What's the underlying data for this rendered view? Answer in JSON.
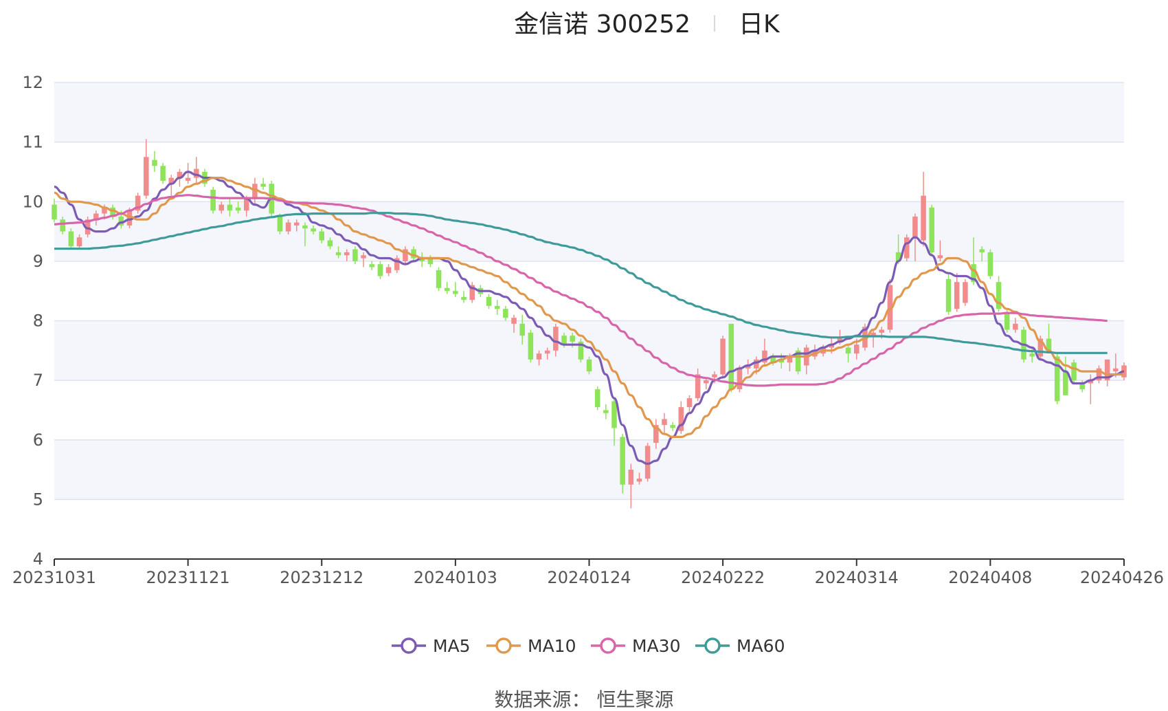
{
  "header": {
    "title": "金信诺 300252",
    "period": "日K"
  },
  "footer": {
    "source": "数据来源： 恒生聚源"
  },
  "colors": {
    "up": "#f28c8c",
    "down": "#8de35a",
    "grid": "#dde3ee",
    "band": "#f4f6fb",
    "MA5": "#7b5bb4",
    "MA10": "#e0984e",
    "MA30": "#d765a9",
    "MA60": "#3f9a9a"
  },
  "chart_data": {
    "type": "candlestick",
    "title": "金信诺 300252 日K",
    "ylim": [
      4,
      12
    ],
    "yticks": [
      4,
      5,
      6,
      7,
      8,
      9,
      10,
      11,
      12
    ],
    "xticks": [
      "20231031",
      "20231121",
      "20231212",
      "20240103",
      "20240124",
      "20240222",
      "20240314",
      "20240408",
      "20240426"
    ],
    "legend": [
      "MA5",
      "MA10",
      "MA30",
      "MA60"
    ],
    "legend_position": "bottom",
    "grid": true,
    "ohlc": [
      [
        9.95,
        10.05,
        9.65,
        9.7
      ],
      [
        9.7,
        9.75,
        9.45,
        9.5
      ],
      [
        9.5,
        9.55,
        9.2,
        9.25
      ],
      [
        9.25,
        9.45,
        9.2,
        9.4
      ],
      [
        9.45,
        9.75,
        9.4,
        9.7
      ],
      [
        9.7,
        9.85,
        9.6,
        9.8
      ],
      [
        9.8,
        9.95,
        9.7,
        9.9
      ],
      [
        9.9,
        9.95,
        9.7,
        9.75
      ],
      [
        9.75,
        9.85,
        9.55,
        9.6
      ],
      [
        9.6,
        9.9,
        9.55,
        9.85
      ],
      [
        9.85,
        10.15,
        9.8,
        10.1
      ],
      [
        10.1,
        11.05,
        10.05,
        10.75
      ],
      [
        10.7,
        10.85,
        10.5,
        10.6
      ],
      [
        10.6,
        10.65,
        10.3,
        10.35
      ],
      [
        10.3,
        10.45,
        10.1,
        10.4
      ],
      [
        10.4,
        10.55,
        10.25,
        10.5
      ],
      [
        10.35,
        10.65,
        10.3,
        10.4
      ],
      [
        10.4,
        10.75,
        10.3,
        10.55
      ],
      [
        10.5,
        10.55,
        10.25,
        10.3
      ],
      [
        10.2,
        10.25,
        9.8,
        9.85
      ],
      [
        9.85,
        10.0,
        9.8,
        9.95
      ],
      [
        9.95,
        10.05,
        9.75,
        9.85
      ],
      [
        9.9,
        10.0,
        9.8,
        9.85
      ],
      [
        9.85,
        10.1,
        9.75,
        10.05
      ],
      [
        10.05,
        10.4,
        9.95,
        10.3
      ],
      [
        10.3,
        10.4,
        10.2,
        10.25
      ],
      [
        10.3,
        10.35,
        9.75,
        9.8
      ],
      [
        9.75,
        9.8,
        9.45,
        9.5
      ],
      [
        9.5,
        9.7,
        9.45,
        9.65
      ],
      [
        9.6,
        9.7,
        9.5,
        9.65
      ],
      [
        9.6,
        9.65,
        9.25,
        9.55
      ],
      [
        9.55,
        9.6,
        9.45,
        9.5
      ],
      [
        9.5,
        9.55,
        9.3,
        9.35
      ],
      [
        9.35,
        9.4,
        9.2,
        9.25
      ],
      [
        9.15,
        9.25,
        9.05,
        9.1
      ],
      [
        9.1,
        9.2,
        9.0,
        9.15
      ],
      [
        9.2,
        9.25,
        8.95,
        9.0
      ],
      [
        9.05,
        9.15,
        8.9,
        9.1
      ],
      [
        8.95,
        9.0,
        8.85,
        8.9
      ],
      [
        8.95,
        9.0,
        8.7,
        8.75
      ],
      [
        8.8,
        8.95,
        8.75,
        8.9
      ],
      [
        8.85,
        9.1,
        8.8,
        9.05
      ],
      [
        9.0,
        9.25,
        8.95,
        9.2
      ],
      [
        9.2,
        9.25,
        9.0,
        9.05
      ],
      [
        9.05,
        9.15,
        8.9,
        9.0
      ],
      [
        9.05,
        9.1,
        8.9,
        8.95
      ],
      [
        8.85,
        8.9,
        8.5,
        8.55
      ],
      [
        8.55,
        8.65,
        8.45,
        8.5
      ],
      [
        8.5,
        8.65,
        8.4,
        8.45
      ],
      [
        8.4,
        8.5,
        8.3,
        8.35
      ],
      [
        8.35,
        8.65,
        8.3,
        8.6
      ],
      [
        8.55,
        8.6,
        8.4,
        8.45
      ],
      [
        8.4,
        8.45,
        8.2,
        8.25
      ],
      [
        8.25,
        8.35,
        8.1,
        8.2
      ],
      [
        8.2,
        8.25,
        8.0,
        8.05
      ],
      [
        7.95,
        8.1,
        7.8,
        8.05
      ],
      [
        7.95,
        8.1,
        7.6,
        7.75
      ],
      [
        7.8,
        7.85,
        7.3,
        7.35
      ],
      [
        7.35,
        7.5,
        7.25,
        7.45
      ],
      [
        7.45,
        7.55,
        7.35,
        7.5
      ],
      [
        7.5,
        7.95,
        7.4,
        7.9
      ],
      [
        7.75,
        7.8,
        7.55,
        7.6
      ],
      [
        7.75,
        7.8,
        7.55,
        7.65
      ],
      [
        7.65,
        7.7,
        7.3,
        7.35
      ],
      [
        7.35,
        7.4,
        7.1,
        7.15
      ],
      [
        6.85,
        6.9,
        6.5,
        6.55
      ],
      [
        6.5,
        6.6,
        6.35,
        6.45
      ],
      [
        6.65,
        6.7,
        5.9,
        6.2
      ],
      [
        6.05,
        6.1,
        5.1,
        5.25
      ],
      [
        5.25,
        5.6,
        4.85,
        5.5
      ],
      [
        5.3,
        5.45,
        5.25,
        5.35
      ],
      [
        5.35,
        5.95,
        5.3,
        5.9
      ],
      [
        5.95,
        6.35,
        5.85,
        6.25
      ],
      [
        6.25,
        6.45,
        6.1,
        6.35
      ],
      [
        6.25,
        6.3,
        6.15,
        6.2
      ],
      [
        6.15,
        6.65,
        6.1,
        6.55
      ],
      [
        6.55,
        6.75,
        6.45,
        6.7
      ],
      [
        6.7,
        7.2,
        6.65,
        7.1
      ],
      [
        6.95,
        7.05,
        6.85,
        7.0
      ],
      [
        7.05,
        7.15,
        6.95,
        7.1
      ],
      [
        7.1,
        7.75,
        7.05,
        7.7
      ],
      [
        7.95,
        7.95,
        6.8,
        6.85
      ],
      [
        6.85,
        7.25,
        6.8,
        7.2
      ],
      [
        7.2,
        7.35,
        7.1,
        7.25
      ],
      [
        7.2,
        7.4,
        7.1,
        7.35
      ],
      [
        7.3,
        7.7,
        7.25,
        7.5
      ],
      [
        7.4,
        7.45,
        7.25,
        7.3
      ],
      [
        7.35,
        7.45,
        7.2,
        7.3
      ],
      [
        7.3,
        7.45,
        7.15,
        7.4
      ],
      [
        7.5,
        7.55,
        7.1,
        7.15
      ],
      [
        7.25,
        7.6,
        7.1,
        7.55
      ],
      [
        7.4,
        7.6,
        7.35,
        7.5
      ],
      [
        7.45,
        7.6,
        7.4,
        7.55
      ],
      [
        7.55,
        7.7,
        7.45,
        7.6
      ],
      [
        7.65,
        7.85,
        7.6,
        7.7
      ],
      [
        7.55,
        7.6,
        7.3,
        7.45
      ],
      [
        7.45,
        7.7,
        7.35,
        7.6
      ],
      [
        7.55,
        7.95,
        7.5,
        7.9
      ],
      [
        7.75,
        7.85,
        7.55,
        7.8
      ],
      [
        7.8,
        7.9,
        7.7,
        7.85
      ],
      [
        7.85,
        8.7,
        7.8,
        8.6
      ],
      [
        9.15,
        9.45,
        8.95,
        9.0
      ],
      [
        9.05,
        9.45,
        9.0,
        9.4
      ],
      [
        9.4,
        9.8,
        9.0,
        9.75
      ],
      [
        9.35,
        10.5,
        9.25,
        10.1
      ],
      [
        9.9,
        9.95,
        9.1,
        9.15
      ],
      [
        9.05,
        9.35,
        9.0,
        9.1
      ],
      [
        8.7,
        8.8,
        8.1,
        8.15
      ],
      [
        8.2,
        8.8,
        8.15,
        8.65
      ],
      [
        8.3,
        8.7,
        8.25,
        8.65
      ],
      [
        8.95,
        9.4,
        8.6,
        8.65
      ],
      [
        9.2,
        9.25,
        9.0,
        9.15
      ],
      [
        9.15,
        9.2,
        8.7,
        8.75
      ],
      [
        8.65,
        8.75,
        8.15,
        8.2
      ],
      [
        8.15,
        8.2,
        7.8,
        7.85
      ],
      [
        7.85,
        8.05,
        7.8,
        7.95
      ],
      [
        7.85,
        7.9,
        7.3,
        7.35
      ],
      [
        7.45,
        7.55,
        7.3,
        7.4
      ],
      [
        7.4,
        7.75,
        7.35,
        7.7
      ],
      [
        7.7,
        7.95,
        7.45,
        7.5
      ],
      [
        7.4,
        7.45,
        6.6,
        6.65
      ],
      [
        7.15,
        7.4,
        6.75,
        6.75
      ],
      [
        7.3,
        7.35,
        6.95,
        7.0
      ],
      [
        6.95,
        7.0,
        6.8,
        6.85
      ],
      [
        6.95,
        7.1,
        6.6,
        7.0
      ],
      [
        7.0,
        7.25,
        6.95,
        7.2
      ],
      [
        7.0,
        7.35,
        6.9,
        7.35
      ],
      [
        7.15,
        7.45,
        7.05,
        7.2
      ],
      [
        7.05,
        7.3,
        7.0,
        7.25
      ]
    ],
    "series": [
      {
        "name": "MA5",
        "values": [
          10.25,
          10.15,
          9.95,
          9.7,
          9.55,
          9.5,
          9.5,
          9.55,
          9.65,
          9.7,
          9.75,
          9.85,
          10.05,
          10.2,
          10.3,
          10.4,
          10.5,
          10.45,
          10.4,
          10.4,
          10.35,
          10.25,
          10.15,
          10.05,
          9.95,
          9.9,
          10.05,
          10.05,
          9.95,
          9.9,
          9.8,
          9.65,
          9.6,
          9.55,
          9.45,
          9.35,
          9.3,
          9.2,
          9.1,
          9.05,
          9.05,
          9.0,
          8.95,
          9.0,
          9.05,
          9.05,
          9.05,
          9.0,
          8.85,
          8.7,
          8.55,
          8.5,
          8.5,
          8.45,
          8.4,
          8.3,
          8.2,
          8.05,
          7.9,
          7.75,
          7.65,
          7.6,
          7.6,
          7.6,
          7.55,
          7.4,
          7.1,
          6.7,
          6.25,
          5.9,
          5.65,
          5.6,
          5.65,
          5.85,
          6.05,
          6.25,
          6.45,
          6.6,
          6.8,
          7.0,
          7.05,
          7.15,
          7.2,
          7.25,
          7.3,
          7.35,
          7.4,
          7.4,
          7.4,
          7.45,
          7.45,
          7.5,
          7.55,
          7.6,
          7.65,
          7.7,
          7.75,
          7.85,
          8.05,
          8.3,
          8.65,
          9.0,
          9.3,
          9.4,
          9.3,
          9.1,
          8.85,
          8.8,
          8.75,
          8.75,
          8.7,
          8.55,
          8.25,
          7.95,
          7.75,
          7.65,
          7.6,
          7.55,
          7.35,
          7.3,
          7.25,
          7.15,
          6.95,
          6.95,
          7.0,
          7.05,
          7.05,
          7.1,
          7.15
        ]
      },
      {
        "name": "MA10",
        "values": [
          10.15,
          10.05,
          10.0,
          10.0,
          9.98,
          9.95,
          9.9,
          9.85,
          9.8,
          9.75,
          9.7,
          9.7,
          9.8,
          9.95,
          10.05,
          10.15,
          10.25,
          10.3,
          10.35,
          10.4,
          10.4,
          10.35,
          10.3,
          10.25,
          10.2,
          10.15,
          10.1,
          10.05,
          10.0,
          9.98,
          9.95,
          9.9,
          9.85,
          9.8,
          9.7,
          9.6,
          9.5,
          9.45,
          9.4,
          9.35,
          9.3,
          9.2,
          9.15,
          9.1,
          9.05,
          9.05,
          9.05,
          9.05,
          9.0,
          8.95,
          8.9,
          8.85,
          8.8,
          8.75,
          8.65,
          8.55,
          8.45,
          8.35,
          8.25,
          8.1,
          8.0,
          7.95,
          7.85,
          7.75,
          7.65,
          7.5,
          7.35,
          7.15,
          6.95,
          6.75,
          6.55,
          6.35,
          6.2,
          6.1,
          6.05,
          6.05,
          6.1,
          6.2,
          6.4,
          6.55,
          6.7,
          6.85,
          6.95,
          7.05,
          7.15,
          7.25,
          7.3,
          7.35,
          7.4,
          7.4,
          7.4,
          7.45,
          7.5,
          7.5,
          7.55,
          7.6,
          7.65,
          7.7,
          7.85,
          8.0,
          8.2,
          8.4,
          8.55,
          8.7,
          8.8,
          8.85,
          8.95,
          9.05,
          9.05,
          9.0,
          8.85,
          8.65,
          8.45,
          8.3,
          8.2,
          8.15,
          8.05,
          7.85,
          7.65,
          7.5,
          7.35,
          7.25,
          7.2,
          7.15,
          7.15,
          7.15,
          7.1,
          7.1,
          7.1
        ]
      },
      {
        "name": "MA30",
        "values": [
          9.62,
          9.63,
          9.64,
          9.65,
          9.67,
          9.7,
          9.73,
          9.76,
          9.8,
          9.85,
          9.9,
          9.96,
          10.02,
          10.06,
          10.08,
          10.1,
          10.11,
          10.1,
          10.08,
          10.07,
          10.06,
          10.06,
          10.06,
          10.06,
          10.06,
          10.06,
          10.05,
          10.02,
          9.99,
          9.98,
          9.98,
          9.97,
          9.97,
          9.96,
          9.95,
          9.93,
          9.9,
          9.88,
          9.85,
          9.8,
          9.75,
          9.7,
          9.65,
          9.6,
          9.55,
          9.49,
          9.43,
          9.37,
          9.32,
          9.26,
          9.2,
          9.14,
          9.07,
          9.0,
          8.94,
          8.87,
          8.8,
          8.72,
          8.64,
          8.56,
          8.49,
          8.43,
          8.37,
          8.31,
          8.23,
          8.15,
          8.05,
          7.93,
          7.82,
          7.7,
          7.59,
          7.49,
          7.38,
          7.29,
          7.21,
          7.14,
          7.09,
          7.06,
          7.04,
          7.01,
          6.98,
          6.96,
          6.94,
          6.92,
          6.91,
          6.91,
          6.92,
          6.93,
          6.93,
          6.93,
          6.93,
          6.93,
          6.94,
          6.97,
          7.03,
          7.11,
          7.2,
          7.28,
          7.36,
          7.45,
          7.53,
          7.63,
          7.72,
          7.8,
          7.88,
          7.94,
          8.0,
          8.05,
          8.08,
          8.1,
          8.11,
          8.12,
          8.12,
          8.12,
          8.13,
          8.13,
          8.11,
          8.09,
          8.08,
          8.07,
          8.06,
          8.05,
          8.04,
          8.03,
          8.02,
          8.01,
          8.0
        ]
      },
      {
        "name": "MA60",
        "values": [
          9.21,
          9.21,
          9.21,
          9.21,
          9.21,
          9.22,
          9.23,
          9.25,
          9.26,
          9.28,
          9.3,
          9.33,
          9.36,
          9.39,
          9.42,
          9.45,
          9.48,
          9.51,
          9.54,
          9.57,
          9.59,
          9.62,
          9.65,
          9.67,
          9.7,
          9.72,
          9.74,
          9.76,
          9.78,
          9.79,
          9.79,
          9.8,
          9.8,
          9.8,
          9.8,
          9.8,
          9.8,
          9.8,
          9.81,
          9.81,
          9.81,
          9.8,
          9.8,
          9.79,
          9.78,
          9.76,
          9.73,
          9.7,
          9.68,
          9.66,
          9.64,
          9.62,
          9.59,
          9.56,
          9.53,
          9.49,
          9.45,
          9.41,
          9.36,
          9.32,
          9.29,
          9.26,
          9.23,
          9.19,
          9.14,
          9.09,
          9.03,
          8.96,
          8.88,
          8.8,
          8.71,
          8.63,
          8.56,
          8.49,
          8.42,
          8.35,
          8.29,
          8.24,
          8.19,
          8.15,
          8.11,
          8.07,
          8.02,
          7.97,
          7.93,
          7.9,
          7.87,
          7.84,
          7.81,
          7.79,
          7.77,
          7.75,
          7.73,
          7.72,
          7.72,
          7.73,
          7.74,
          7.74,
          7.74,
          7.74,
          7.73,
          7.73,
          7.73,
          7.73,
          7.73,
          7.72,
          7.7,
          7.68,
          7.66,
          7.64,
          7.63,
          7.61,
          7.59,
          7.57,
          7.55,
          7.52,
          7.5,
          7.49,
          7.48,
          7.47,
          7.46,
          7.46,
          7.46,
          7.46,
          7.46,
          7.46,
          7.46
        ]
      }
    ]
  }
}
